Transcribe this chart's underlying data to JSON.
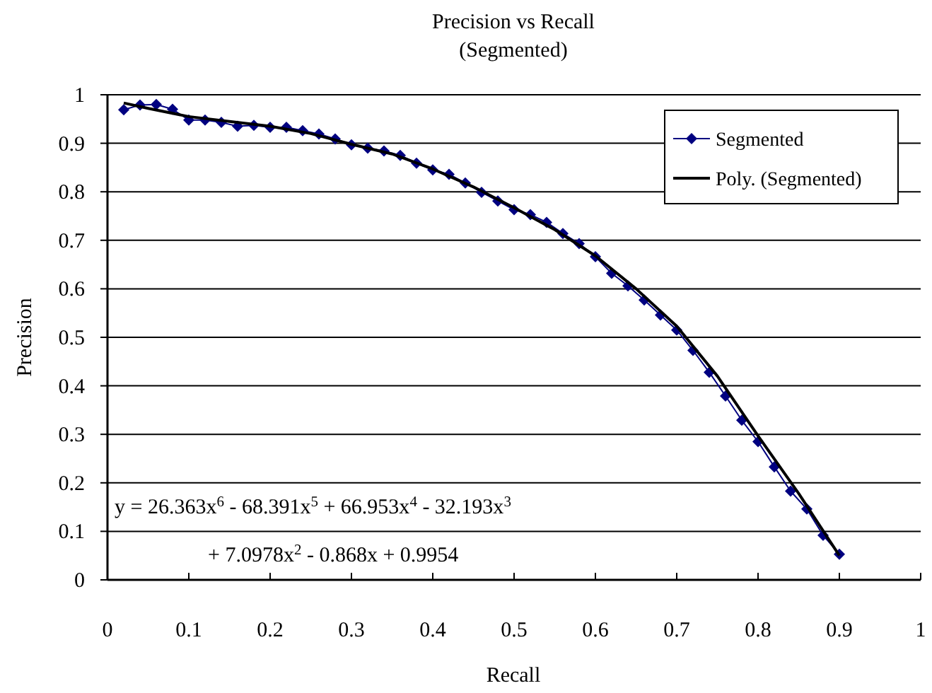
{
  "chart_data": {
    "type": "line",
    "title": "Precision vs Recall",
    "subtitle": "(Segmented)",
    "xlabel": "Recall",
    "ylabel": "Precision",
    "xlim": [
      0,
      1
    ],
    "ylim": [
      0,
      1
    ],
    "xticks": [
      0,
      0.1,
      0.2,
      0.3,
      0.4,
      0.5,
      0.6,
      0.7,
      0.8,
      0.9,
      1
    ],
    "yticks": [
      0,
      0.1,
      0.2,
      0.3,
      0.4,
      0.5,
      0.6,
      0.7,
      0.8,
      0.9,
      1
    ],
    "grid": "y",
    "legend": "top right",
    "marker": "diamond",
    "line_style": "solid",
    "series": [
      {
        "name": "Segmented",
        "color": "#000080",
        "x": [
          0.02,
          0.04,
          0.06,
          0.08,
          0.1,
          0.12,
          0.14,
          0.16,
          0.18,
          0.2,
          0.22,
          0.24,
          0.26,
          0.28,
          0.3,
          0.32,
          0.34,
          0.36,
          0.38,
          0.4,
          0.42,
          0.44,
          0.46,
          0.48,
          0.5,
          0.52,
          0.54,
          0.56,
          0.58,
          0.6,
          0.62,
          0.64,
          0.66,
          0.68,
          0.7,
          0.72,
          0.74,
          0.76,
          0.78,
          0.8,
          0.82,
          0.84,
          0.86,
          0.88,
          0.9
        ],
        "values": [
          0.969,
          0.979,
          0.98,
          0.97,
          0.948,
          0.948,
          0.943,
          0.935,
          0.937,
          0.933,
          0.933,
          0.926,
          0.919,
          0.909,
          0.897,
          0.89,
          0.884,
          0.875,
          0.859,
          0.845,
          0.836,
          0.818,
          0.799,
          0.781,
          0.763,
          0.753,
          0.737,
          0.714,
          0.693,
          0.666,
          0.632,
          0.606,
          0.577,
          0.546,
          0.515,
          0.473,
          0.428,
          0.379,
          0.329,
          0.285,
          0.233,
          0.183,
          0.146,
          0.092,
          0.053
        ]
      },
      {
        "name": "Poly. (Segmented)",
        "color": "#000000",
        "marker": "none",
        "x": [
          0.02,
          0.05,
          0.1,
          0.15,
          0.2,
          0.25,
          0.3,
          0.35,
          0.4,
          0.45,
          0.5,
          0.55,
          0.6,
          0.65,
          0.7,
          0.75,
          0.8,
          0.85,
          0.9
        ],
        "values": [
          0.983,
          0.972,
          0.955,
          0.945,
          0.935,
          0.92,
          0.898,
          0.878,
          0.847,
          0.81,
          0.767,
          0.722,
          0.668,
          0.6,
          0.523,
          0.42,
          0.297,
          0.178,
          0.05
        ]
      }
    ],
    "annotations": [
      "y = 26.363x$^{6}$ - 68.391x$^{5}$ + 66.953x$^{4}$ - 32.193x$^{3}$",
      "+ 7.0978x$^{2}$ - 0.868x + 0.9954"
    ]
  }
}
